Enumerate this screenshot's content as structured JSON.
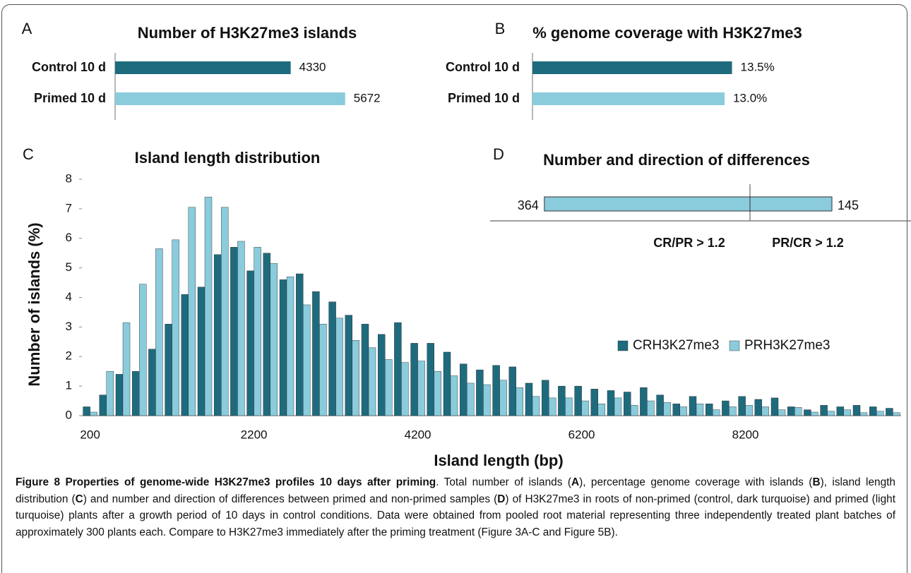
{
  "chart_data": [
    {
      "type": "hbar",
      "panel": "A",
      "title": "Number of H3K27me3 islands",
      "categories": [
        "Control 10 d",
        "Primed 10 d"
      ],
      "values": [
        4330,
        5672
      ],
      "colors": [
        "#1f6b7e",
        "#8acbdc"
      ],
      "xlim": [
        0,
        7000
      ]
    },
    {
      "type": "hbar",
      "panel": "B",
      "title": "% genome coverage with H3K27me3",
      "categories": [
        "Control 10 d",
        "Primed 10 d"
      ],
      "values": [
        13.5,
        13.0
      ],
      "value_labels": [
        "13.5%",
        "13.0%"
      ],
      "colors": [
        "#1f6b7e",
        "#8acbdc"
      ],
      "xlim": [
        0,
        14
      ]
    },
    {
      "type": "bar",
      "panel": "C",
      "title": "Island length distribution",
      "x_label": "Island length (bp)",
      "y_label": "Number of islands (%)",
      "categories": [
        200,
        null,
        null,
        null,
        null,
        null,
        null,
        null,
        null,
        null,
        2200,
        null,
        null,
        null,
        null,
        null,
        null,
        null,
        null,
        null,
        4200,
        null,
        null,
        null,
        null,
        null,
        null,
        null,
        null,
        null,
        6200,
        null,
        null,
        null,
        null,
        null,
        null,
        null,
        null,
        null,
        8200,
        null,
        null,
        null,
        null,
        null,
        null,
        null,
        null,
        null
      ],
      "series": [
        {
          "name": "CRH3K27me3",
          "color": "#1f6b7e",
          "values": [
            0.3,
            0.7,
            1.4,
            1.5,
            2.25,
            3.1,
            4.1,
            4.35,
            5.45,
            5.7,
            4.9,
            5.5,
            4.6,
            4.8,
            4.2,
            3.85,
            3.4,
            3.1,
            2.75,
            3.15,
            2.45,
            2.45,
            2.15,
            1.75,
            1.55,
            1.7,
            1.65,
            1.1,
            1.2,
            1.0,
            1.0,
            0.9,
            0.85,
            0.8,
            0.95,
            0.7,
            0.4,
            0.65,
            0.4,
            0.5,
            0.65,
            0.55,
            0.6,
            0.3,
            0.2,
            0.35,
            0.3,
            0.35,
            0.3,
            0.25
          ]
        },
        {
          "name": "PRH3K27me3",
          "color": "#8acbdc",
          "values": [
            0.12,
            1.5,
            3.15,
            4.45,
            5.65,
            5.95,
            7.05,
            7.4,
            7.05,
            5.9,
            5.7,
            5.15,
            4.7,
            3.75,
            3.1,
            3.3,
            2.55,
            2.3,
            1.9,
            1.8,
            1.85,
            1.5,
            1.35,
            1.1,
            1.05,
            1.2,
            0.95,
            0.65,
            0.6,
            0.6,
            0.5,
            0.4,
            0.6,
            0.35,
            0.5,
            0.45,
            0.3,
            0.4,
            0.2,
            0.3,
            0.35,
            0.3,
            0.2,
            0.28,
            0.12,
            0.15,
            0.2,
            0.1,
            0.15,
            0.1
          ]
        }
      ],
      "ylim": [
        0,
        8
      ],
      "yticks": [
        0,
        1,
        2,
        3,
        4,
        5,
        6,
        7,
        8
      ],
      "grid": false,
      "legend": "right"
    },
    {
      "type": "diverging",
      "panel": "D",
      "title": "Number and direction of differences",
      "categories": [
        "CR/PR > 1.2",
        "PR/CR > 1.2"
      ],
      "values": [
        364,
        145
      ],
      "color": "#8acbdc",
      "xlim": [
        0,
        460
      ]
    }
  ],
  "caption": {
    "runs": [
      {
        "text": "Figure 8 Properties of genome-wide H3K27me3 profiles 10 days after priming",
        "bold": true
      },
      {
        "text": ". Total number of islands ("
      },
      {
        "text": "A",
        "bold": true
      },
      {
        "text": "), percentage genome coverage with islands ("
      },
      {
        "text": "B",
        "bold": true
      },
      {
        "text": "), island length distribution ("
      },
      {
        "text": "C",
        "bold": true
      },
      {
        "text": ") and number and direction of differences between primed and non-primed samples ("
      },
      {
        "text": "D",
        "bold": true
      },
      {
        "text": ") of H3K27me3 in roots of non-primed (control, dark turquoise) and primed (light turquoise) plants after a growth period of 10 days in control conditions. Data were obtained from pooled root material representing three independently treated plant batches of approximately 300 plants each. Compare to H3K27me3 immediately after the priming treatment (Figure 3A-C and Figure 5B)."
      }
    ]
  }
}
